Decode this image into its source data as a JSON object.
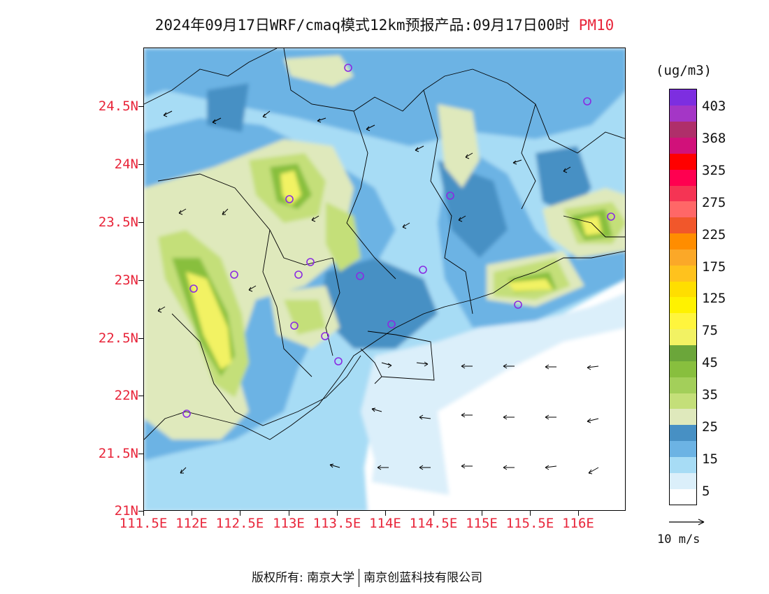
{
  "title": {
    "text": "2024年09月17日WRF/cmaq模式12km预报产品:09月17日00时",
    "variable": "PM10"
  },
  "axes": {
    "lat_labels": [
      "24.5N",
      "24N",
      "23.5N",
      "23N",
      "22.5N",
      "22N",
      "21.5N",
      "21N"
    ],
    "lon_labels": [
      "111.5E",
      "112E",
      "112.5E",
      "113E",
      "113.5E",
      "114E",
      "114.5E",
      "115E",
      "115.5E",
      "116E"
    ]
  },
  "colorbar": {
    "unit": "(ug/m3)",
    "labels": [
      "403",
      "368",
      "325",
      "275",
      "225",
      "175",
      "125",
      "75",
      "45",
      "35",
      "25",
      "15",
      "5"
    ],
    "colors": [
      "#ffffff",
      "#dbeffa",
      "#a7dcf5",
      "#6cb3e4",
      "#4790c4",
      "#dfe9bc",
      "#c4df79",
      "#a3cf5a",
      "#88bf3e",
      "#6ba63a",
      "#f2f263",
      "#fff53d",
      "#fff200",
      "#ffde00",
      "#ffc21d",
      "#fba828",
      "#ff8d00",
      "#f1572b",
      "#ff6767",
      "#f53454",
      "#ff0050",
      "#ff0000",
      "#d1117a",
      "#af2f6a",
      "#a436c6",
      "#7d2ee0"
    ]
  },
  "wind_reference": "10 m/s",
  "footer": {
    "copyright_label": "版权所有:",
    "org1": "南京大学",
    "org2": "南京创蓝科技有限公司"
  }
}
